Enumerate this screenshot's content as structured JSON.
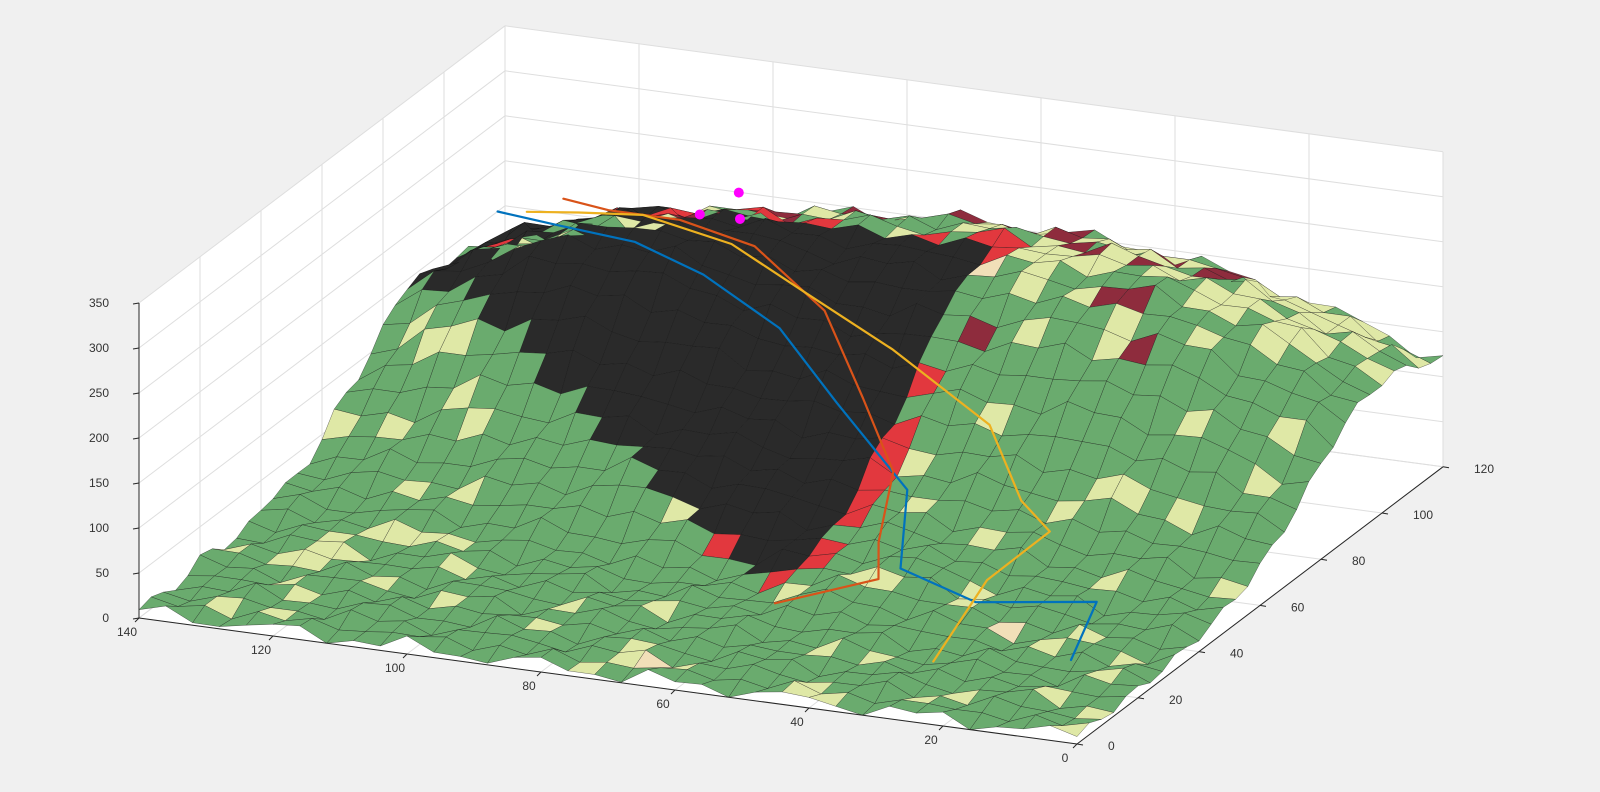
{
  "chart_data": {
    "type": "surface",
    "title": "",
    "xlabel": "",
    "ylabel": "",
    "zlabel": "",
    "grid": true,
    "legend": "none",
    "xlim": [
      0,
      140
    ],
    "ylim": [
      0,
      120
    ],
    "zlim": [
      0,
      350
    ],
    "x_ticks": [
      "0",
      "20",
      "40",
      "60",
      "80",
      "100",
      "120",
      "140"
    ],
    "y_ticks": [
      "0",
      "20",
      "40",
      "60",
      "80",
      "100",
      "120"
    ],
    "z_ticks": [
      "0",
      "50",
      "100",
      "150",
      "200",
      "250",
      "300",
      "350"
    ],
    "surface_colors": {
      "dark_region": "#2a2a2a",
      "forest": "#6aab6e",
      "meadow": "#dfe8a6",
      "light_patch": "#f1dfb8",
      "burn_edge": "#e2383e",
      "ridge_red": "#8e2c3d",
      "mesh_line": "#111111"
    },
    "series": [
      {
        "color": "#0072bd",
        "points": [
          [
            132,
            100,
            203
          ],
          [
            121,
            95,
            212
          ],
          [
            107,
            90,
            220
          ],
          [
            94,
            84,
            212
          ],
          [
            79,
            76,
            188
          ],
          [
            65,
            64,
            150
          ],
          [
            49,
            52,
            100
          ],
          [
            40,
            30,
            78
          ],
          [
            26,
            24,
            70
          ],
          [
            13,
            35,
            55
          ],
          [
            10,
            20,
            32
          ]
        ]
      },
      {
        "color": "#d95319",
        "points": [
          [
            124,
            104,
            215
          ],
          [
            115,
            99,
            224
          ],
          [
            103,
            96,
            233
          ],
          [
            90,
            92,
            227
          ],
          [
            75,
            82,
            196
          ],
          [
            62,
            66,
            153
          ],
          [
            52,
            54,
            112
          ],
          [
            46,
            36,
            86
          ],
          [
            41,
            25,
            78
          ],
          [
            51,
            13,
            72
          ]
        ]
      },
      {
        "color": "#edb120",
        "points": [
          [
            129,
            103,
            198
          ],
          [
            119,
            98,
            220
          ],
          [
            108,
            95,
            236
          ],
          [
            93,
            91,
            229
          ],
          [
            79,
            84,
            208
          ],
          [
            63,
            78,
            175
          ],
          [
            44,
            68,
            136
          ],
          [
            32,
            52,
            105
          ],
          [
            25,
            46,
            93
          ],
          [
            28,
            32,
            72
          ],
          [
            26,
            10,
            40
          ]
        ]
      }
    ],
    "start_markers": {
      "color": "#ff00ff",
      "points": [
        [
          100,
          96,
          242
        ],
        [
          96,
          100,
          260
        ],
        [
          94,
          96,
          243
        ]
      ]
    }
  }
}
